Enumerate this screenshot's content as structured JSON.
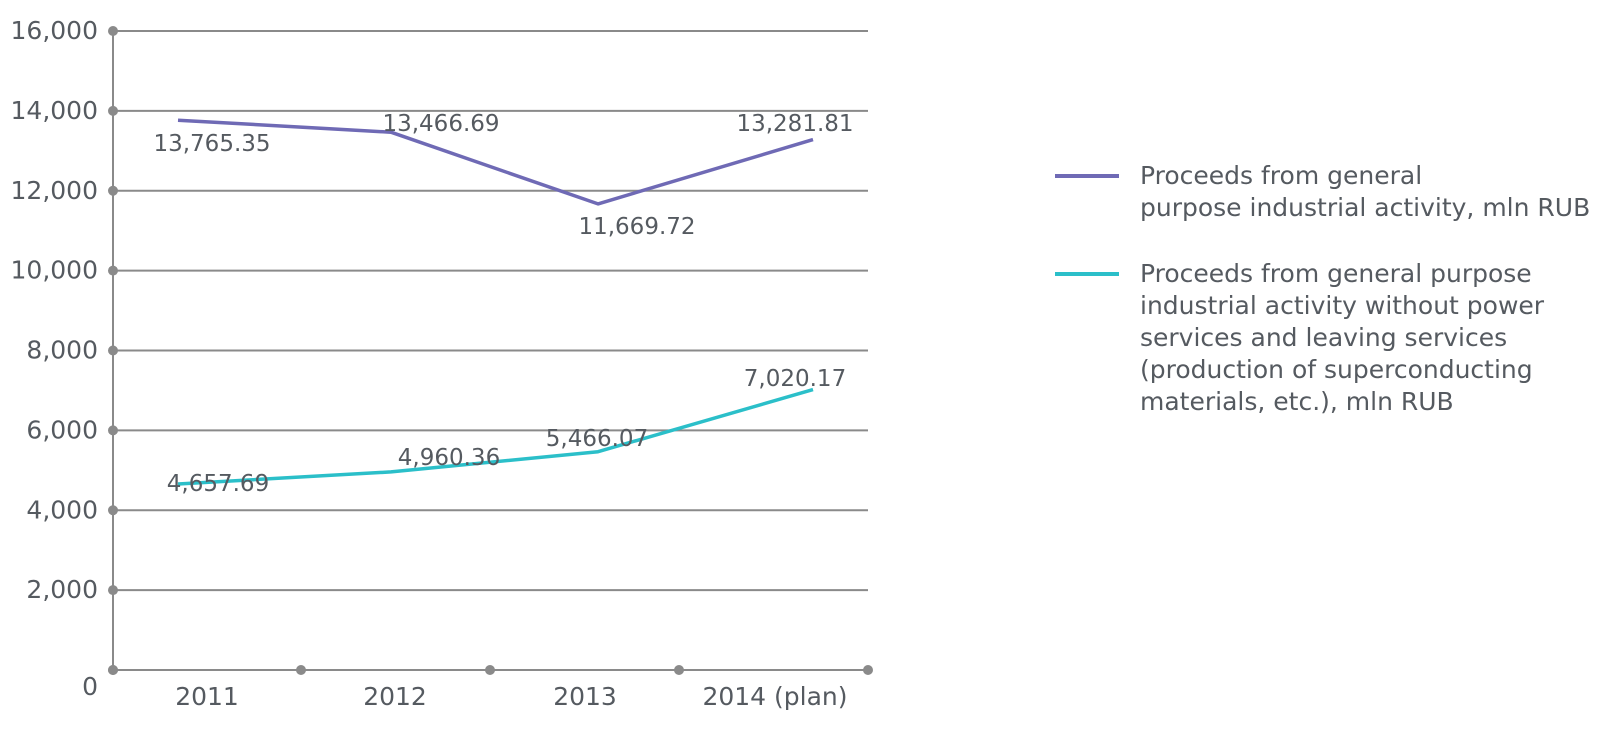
{
  "chart_data": {
    "type": "line",
    "categories": [
      "2011",
      "2012",
      "2013",
      "2014 (plan)"
    ],
    "ylim": [
      0,
      16000
    ],
    "yticks": [
      0,
      2000,
      4000,
      6000,
      8000,
      10000,
      12000,
      14000,
      16000
    ],
    "ytick_labels": [
      "0",
      "2,000",
      "4,000",
      "6,000",
      "8,000",
      "10,000",
      "12,000",
      "14,000",
      "16,000"
    ],
    "grid": true,
    "legend_position": "right",
    "series": [
      {
        "name": "Proceeds from general purpose industrial activity, mln RUB",
        "color": "#6f6ab5",
        "values": [
          13765.35,
          13466.69,
          11669.72,
          13281.81
        ],
        "labels": [
          "13,765.35",
          "13,466.69",
          "11,669.72",
          "13,281.81"
        ]
      },
      {
        "name": "Proceeds from general purpose industrial activity without power services and leaving services (production of superconducting materials, etc.), mln RUB",
        "color": "#2bbfc9",
        "values": [
          4657.69,
          4960.36,
          5466.07,
          7020.17
        ],
        "labels": [
          "4,657.69",
          "4,960.36",
          "5,466.07",
          "7,020.17"
        ]
      }
    ]
  },
  "legend": [
    {
      "text_line1": "Proceeds from general",
      "text_line2": "purpose industrial activity, mln RUB"
    },
    {
      "text_lines": [
        "Proceeds from general purpose",
        "industrial activity without power",
        "services and leaving services",
        "(production of superconducting",
        "materials, etc.), mln RUB"
      ]
    }
  ]
}
